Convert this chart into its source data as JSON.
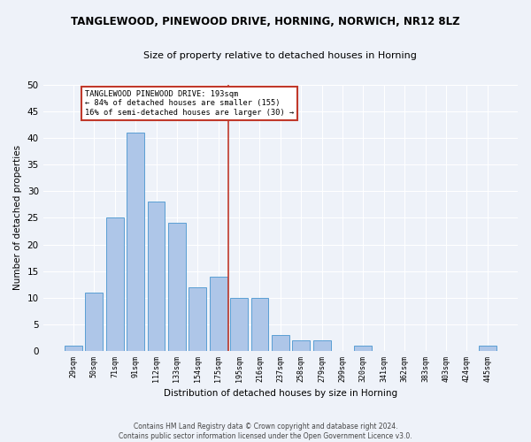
{
  "title": "TANGLEWOOD, PINEWOOD DRIVE, HORNING, NORWICH, NR12 8LZ",
  "subtitle": "Size of property relative to detached houses in Horning",
  "xlabel": "Distribution of detached houses by size in Horning",
  "ylabel": "Number of detached properties",
  "categories": [
    "29sqm",
    "50sqm",
    "71sqm",
    "91sqm",
    "112sqm",
    "133sqm",
    "154sqm",
    "175sqm",
    "195sqm",
    "216sqm",
    "237sqm",
    "258sqm",
    "279sqm",
    "299sqm",
    "320sqm",
    "341sqm",
    "362sqm",
    "383sqm",
    "403sqm",
    "424sqm",
    "445sqm"
  ],
  "bar_values": [
    1,
    11,
    25,
    41,
    28,
    24,
    12,
    14,
    10,
    10,
    3,
    2,
    2,
    0,
    1,
    0,
    0,
    0,
    0,
    0,
    1
  ],
  "bar_color": "#aec6e8",
  "bar_edge_color": "#5a9fd4",
  "vline_pos": 7.5,
  "vline_color": "#c0392b",
  "annotation_title": "TANGLEWOOD PINEWOOD DRIVE: 193sqm",
  "annotation_line1": "← 84% of detached houses are smaller (155)",
  "annotation_line2": "16% of semi-detached houses are larger (30) →",
  "annotation_box_color": "#c0392b",
  "ylim": [
    0,
    50
  ],
  "yticks": [
    0,
    5,
    10,
    15,
    20,
    25,
    30,
    35,
    40,
    45,
    50
  ],
  "footer1": "Contains HM Land Registry data © Crown copyright and database right 2024.",
  "footer2": "Contains public sector information licensed under the Open Government Licence v3.0.",
  "bg_color": "#eef2f9"
}
